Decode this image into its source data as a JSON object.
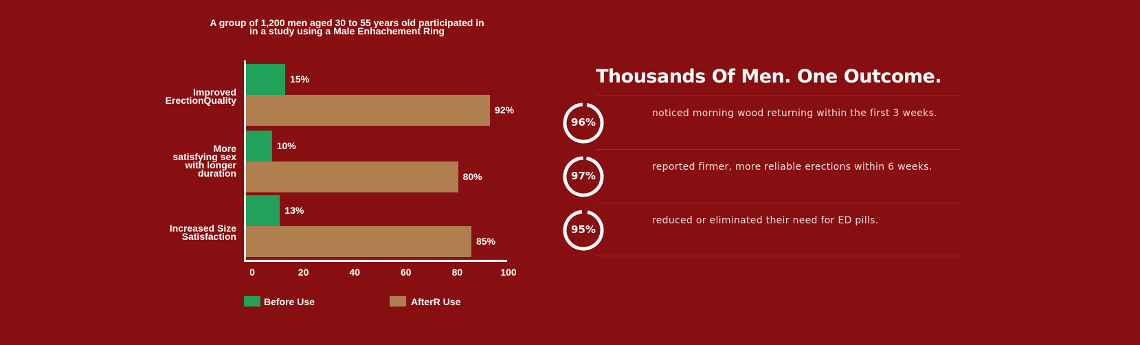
{
  "chart_data": {
    "type": "bar",
    "orientation": "horizontal",
    "title": "A group of 1,200 men aged 30 to 55 years old participated in in a study using a Male Enhachement Ring",
    "title_lines": [
      "A group of 1,200 men aged 30 to 55 years old participated in",
      "in a study using a Male Enhachement Ring"
    ],
    "categories": [
      {
        "lines": [
          "Improved",
          "ErectionQuality"
        ]
      },
      {
        "lines": [
          "More",
          "satisfying sex",
          "with longer",
          "duration"
        ]
      },
      {
        "lines": [
          "Increased Size",
          "Satisfaction"
        ]
      }
    ],
    "series": [
      {
        "name": "Before Use",
        "color": "#21a159",
        "values": [
          15,
          10,
          13
        ],
        "labels": [
          "15%",
          "10%",
          "13%"
        ]
      },
      {
        "name": "AfterR Use",
        "color": "#b07f4f",
        "values": [
          92,
          80,
          85
        ],
        "labels": [
          "92%",
          "80%",
          "85%"
        ]
      }
    ],
    "xticks": [
      "0",
      "20",
      "40",
      "60",
      "80",
      "100"
    ],
    "xlim": [
      0,
      100
    ],
    "legend": "bottom"
  },
  "stats": {
    "heading": "Thousands Of Men. One Outcome.",
    "items": [
      {
        "value": 96,
        "label": "96%",
        "text": "noticed morning wood returning within the first 3 weeks."
      },
      {
        "value": 97,
        "label": "97%",
        "text": "reported firmer, more reliable erections within 6 weeks."
      },
      {
        "value": 95,
        "label": "95%",
        "text": "reduced or eliminated their need for ED pills."
      }
    ]
  },
  "colors": {
    "background": "#870f11",
    "before": "#21a159",
    "after": "#b07f4f"
  }
}
